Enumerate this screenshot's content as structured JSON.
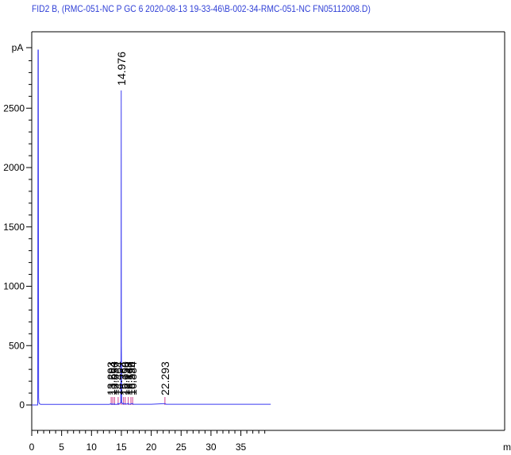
{
  "title": "FID2 B, (RMC-051-NC P GC 6 2020-08-13 19-33-46\\B-002-34-RMC-051-NC FN05112008.D)",
  "colors": {
    "trace": "#3b3bf0",
    "title": "#2f3fd6",
    "axis": "#000000",
    "marker": "#d0408f"
  },
  "chart_data": {
    "type": "line",
    "xlabel": "min",
    "ylabel": "pA",
    "xlim": [
      0,
      40
    ],
    "ylim": [
      -20,
      3000
    ],
    "xticks": [
      0,
      5,
      10,
      15,
      20,
      25,
      30,
      35
    ],
    "xtick_labels": [
      "0",
      "5",
      "10",
      "15",
      "20",
      "25",
      "30",
      "35"
    ],
    "yticks": [
      0,
      500,
      1000,
      1500,
      2000,
      2500
    ],
    "ytick_labels": [
      "0",
      "500",
      "1000",
      "1500",
      "2000",
      "2500"
    ],
    "grid": false,
    "series": [
      {
        "x": [
          0,
          1.0,
          1.05,
          1.1,
          1.15,
          1.2,
          1.3,
          1.5,
          13.0,
          13.29,
          13.3,
          13.5,
          13.56,
          13.6,
          13.8,
          13.86,
          13.9,
          14.3,
          14.46,
          14.6,
          14.9,
          14.95,
          14.976,
          15.0,
          15.05,
          15.2,
          15.36,
          15.45,
          15.65,
          15.66,
          15.9,
          16.14,
          16.3,
          16.5,
          16.6,
          16.88,
          17.0,
          20,
          22.29,
          22.5,
          40
        ],
        "y": [
          0,
          0,
          2990,
          2990,
          60,
          20,
          10,
          5,
          5,
          12,
          6,
          6,
          10,
          6,
          6,
          10,
          5,
          5,
          14,
          6,
          20,
          500,
          2650,
          500,
          25,
          8,
          15,
          8,
          8,
          12,
          6,
          14,
          6,
          6,
          10,
          12,
          6,
          6,
          12,
          6,
          6
        ]
      }
    ],
    "peak_labels": [
      {
        "x": 13.293,
        "label": "13.293"
      },
      {
        "x": 13.564,
        "label": "13.564"
      },
      {
        "x": 13.856,
        "label": "13.856"
      },
      {
        "x": 14.464,
        "label": "14.464"
      },
      {
        "x": 14.976,
        "label": "14.976"
      },
      {
        "x": 15.364,
        "label": "15.364"
      },
      {
        "x": 15.658,
        "label": "15.658"
      },
      {
        "x": 16.148,
        "label": "16.148"
      },
      {
        "x": 16.596,
        "label": "16.596"
      },
      {
        "x": 16.884,
        "label": "16.884"
      },
      {
        "x": 22.293,
        "label": "22.293"
      }
    ]
  }
}
